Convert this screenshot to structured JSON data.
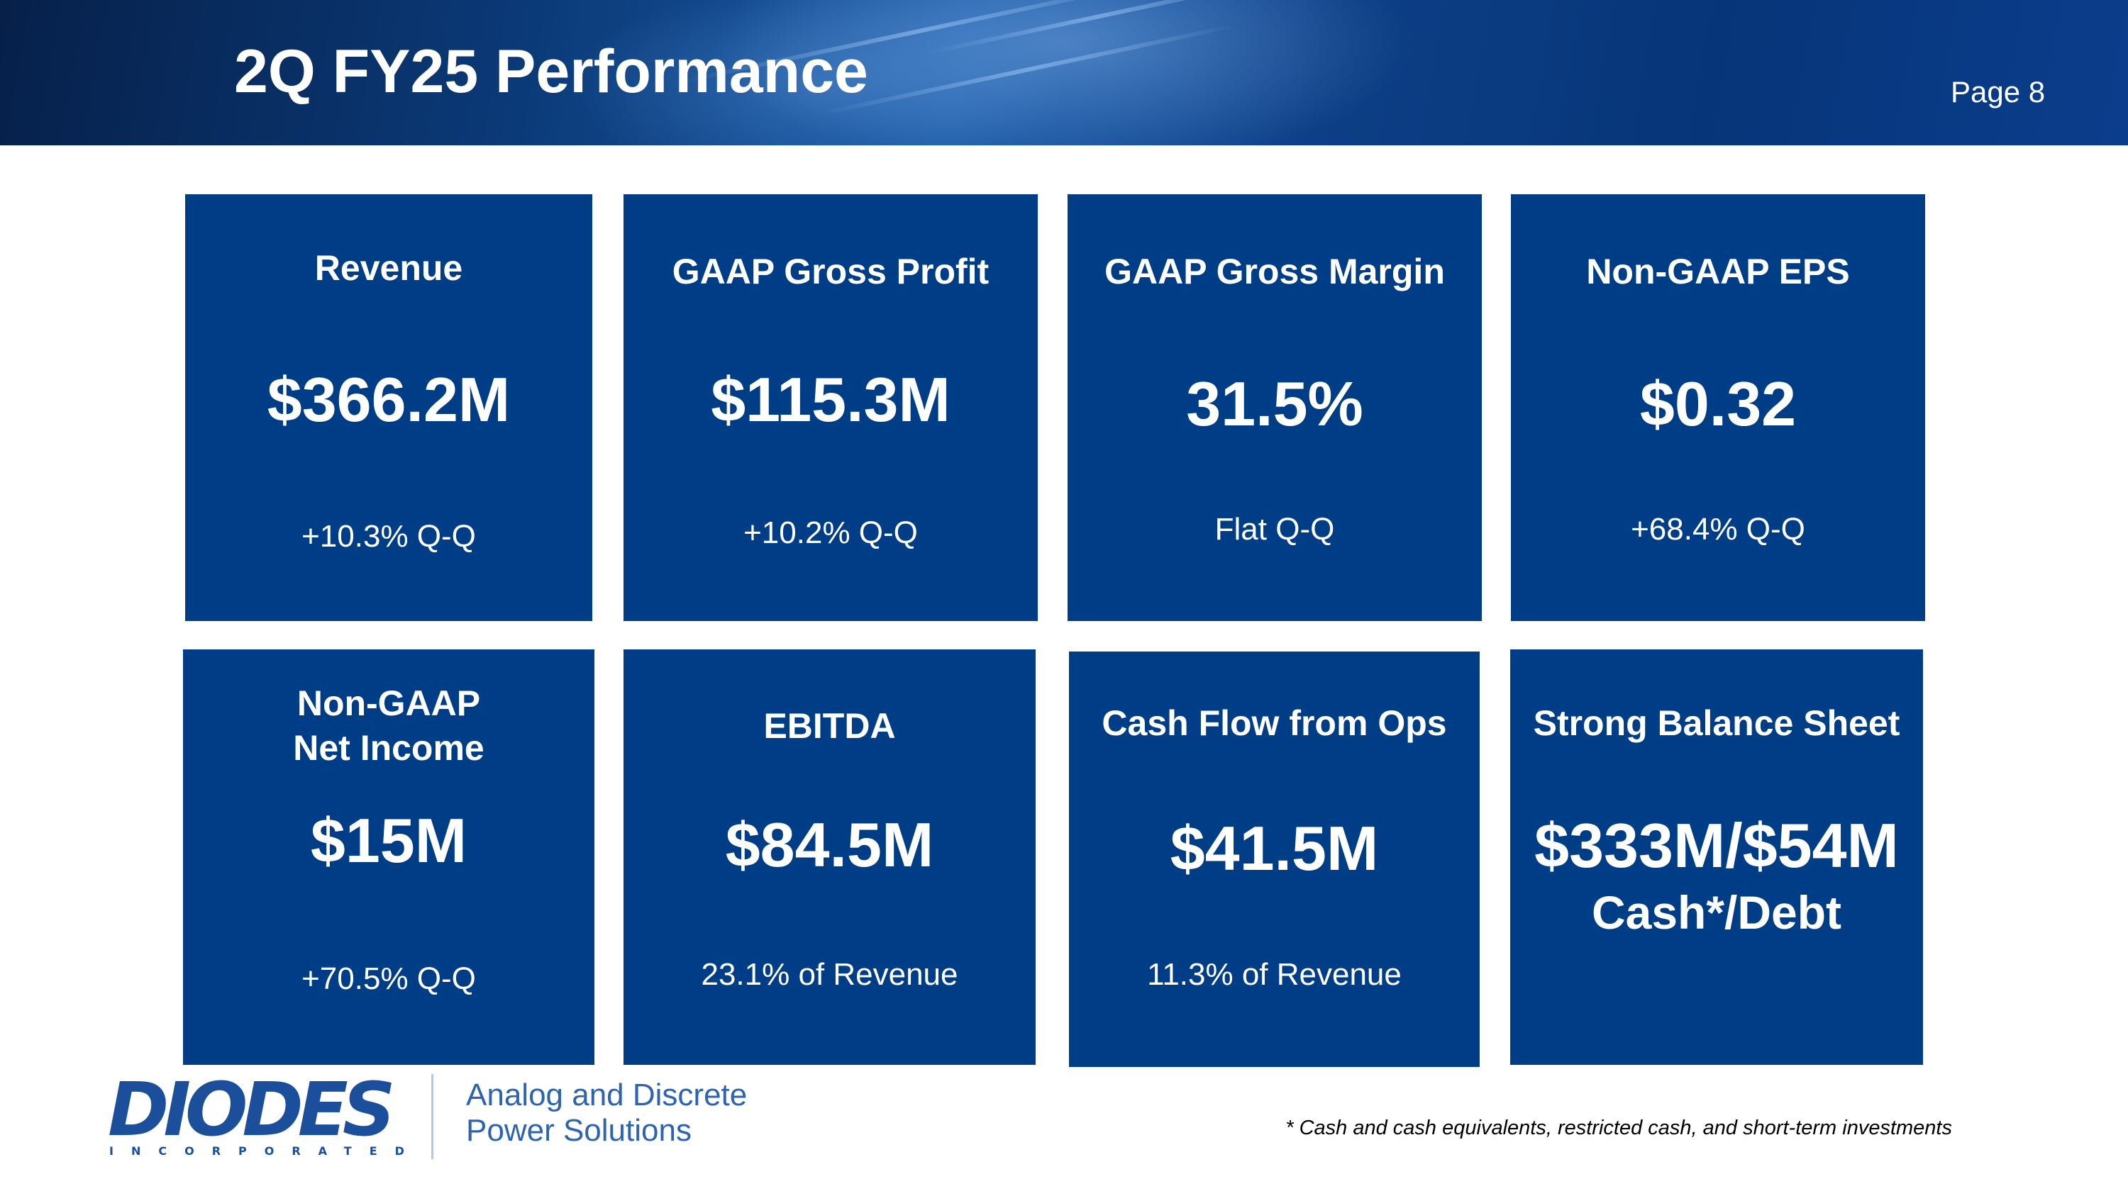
{
  "header": {
    "title": "2Q FY25 Performance",
    "page": "Page 8"
  },
  "tiles": [
    {
      "label": "Revenue",
      "value": "$366.2M",
      "sub": "+10.3% Q-Q"
    },
    {
      "label": "GAAP Gross Profit",
      "value": "$115.3M",
      "sub": "+10.2% Q-Q"
    },
    {
      "label": "GAAP Gross Margin",
      "value": "31.5%",
      "sub": "Flat Q-Q"
    },
    {
      "label": "Non-GAAP EPS",
      "value": "$0.32",
      "sub": "+68.4% Q-Q"
    },
    {
      "label_line1": "Non-GAAP",
      "label_line2": "Net Income",
      "value": "$15M",
      "sub": "+70.5% Q-Q"
    },
    {
      "label": "EBITDA",
      "value": "$84.5M",
      "sub": "23.1% of Revenue"
    },
    {
      "label": "Cash Flow from Ops",
      "value": "$41.5M",
      "sub": "11.3% of Revenue"
    },
    {
      "label": "Strong Balance Sheet",
      "value": "$333M/$54M",
      "value_line2": "Cash*/Debt"
    }
  ],
  "footer": {
    "logo_text": "DIODES",
    "logo_subtext": "INCORPORATED",
    "tagline_line1": "Analog and Discrete",
    "tagline_line2": "Power Solutions",
    "footnote": "* Cash and cash equivalents, restricted cash, and short-term investments"
  },
  "colors": {
    "tile_blue": "#003d87",
    "brand_blue": "#1b4f9c",
    "tagline_blue": "#2e63b0"
  }
}
